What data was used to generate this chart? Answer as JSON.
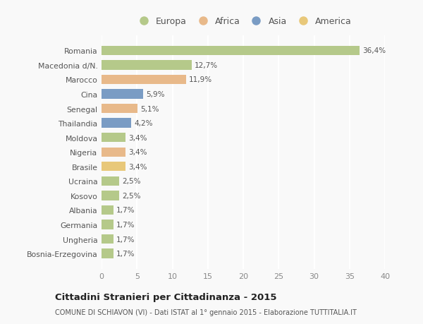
{
  "categories": [
    "Romania",
    "Macedonia d/N.",
    "Marocco",
    "Cina",
    "Senegal",
    "Thailandia",
    "Moldova",
    "Nigeria",
    "Brasile",
    "Ucraina",
    "Kosovo",
    "Albania",
    "Germania",
    "Ungheria",
    "Bosnia-Erzegovina"
  ],
  "values": [
    36.4,
    12.7,
    11.9,
    5.9,
    5.1,
    4.2,
    3.4,
    3.4,
    3.4,
    2.5,
    2.5,
    1.7,
    1.7,
    1.7,
    1.7
  ],
  "labels": [
    "36,4%",
    "12,7%",
    "11,9%",
    "5,9%",
    "5,1%",
    "4,2%",
    "3,4%",
    "3,4%",
    "3,4%",
    "2,5%",
    "2,5%",
    "1,7%",
    "1,7%",
    "1,7%",
    "1,7%"
  ],
  "colors": [
    "#b5c98a",
    "#b5c98a",
    "#e8b98a",
    "#7a9cc4",
    "#e8b98a",
    "#7a9cc4",
    "#b5c98a",
    "#e8b98a",
    "#e8c87a",
    "#b5c98a",
    "#b5c98a",
    "#b5c98a",
    "#b5c98a",
    "#b5c98a",
    "#b5c98a"
  ],
  "continent_colors": {
    "Europa": "#b5c98a",
    "Africa": "#e8b98a",
    "Asia": "#7a9cc4",
    "America": "#e8c87a"
  },
  "title": "Cittadini Stranieri per Cittadinanza - 2015",
  "subtitle": "COMUNE DI SCHIAVON (VI) - Dati ISTAT al 1° gennaio 2015 - Elaborazione TUTTITALIA.IT",
  "xlim": [
    0,
    40
  ],
  "xticks": [
    0,
    5,
    10,
    15,
    20,
    25,
    30,
    35,
    40
  ],
  "background_color": "#f9f9f9",
  "grid_color": "#ffffff",
  "bar_height": 0.65
}
